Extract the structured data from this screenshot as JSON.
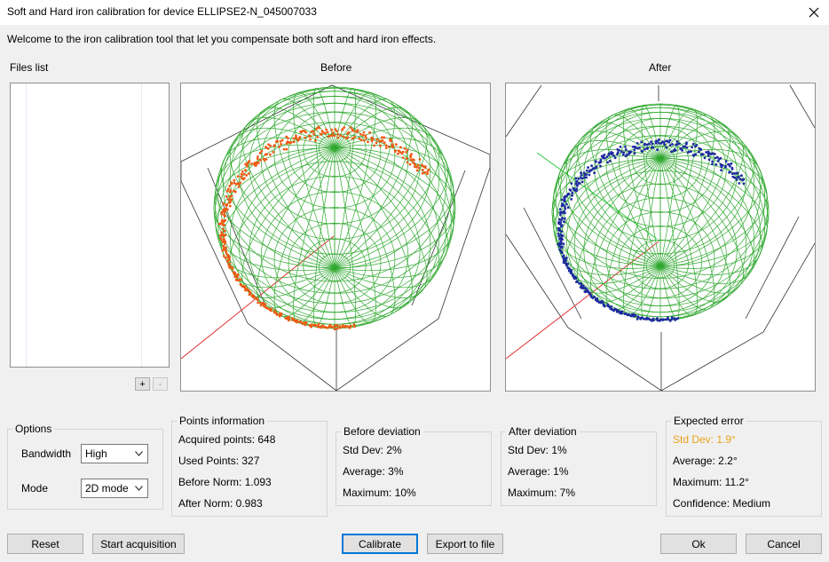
{
  "window": {
    "title": "Soft and Hard iron calibration for device ELLIPSE2-N_045007033",
    "close_icon": "close-icon"
  },
  "welcome_text": "Welcome to the iron calibration tool that let you compensate both soft and hard iron effects.",
  "files": {
    "label": "Files list",
    "add_label": "+",
    "remove_label": "-"
  },
  "views": {
    "before_label": "Before",
    "after_label": "After"
  },
  "colors": {
    "sphere": "#2fa82f",
    "before_points": "#f05a14",
    "after_points": "#1e2aa0",
    "axis_red": "#e03030",
    "axis_green": "#2ecc40",
    "warning": "#e8a317"
  },
  "options": {
    "label": "Options",
    "bandwidth_label": "Bandwidth",
    "bandwidth_value": "High",
    "mode_label": "Mode",
    "mode_value": "2D mode"
  },
  "points_info": {
    "label": "Points information",
    "acquired": "Acquired points: 648",
    "used": "Used Points: 327",
    "before_norm": "Before Norm: 1.093",
    "after_norm": "After Norm: 0.983"
  },
  "before_deviation": {
    "label": "Before deviation",
    "std": "Std Dev: 2%",
    "avg": "Average: 3%",
    "max": "Maximum: 10%"
  },
  "after_deviation": {
    "label": "After deviation",
    "std": "Std Dev: 1%",
    "avg": "Average: 1%",
    "max": "Maximum: 7%"
  },
  "expected_error": {
    "label": "Expected error",
    "std": "Std Dev: 1.9°",
    "avg": "Average: 2.2°",
    "max": "Maximum: 11.2°",
    "confidence": "Confidence: Medium"
  },
  "buttons": {
    "reset": "Reset",
    "start": "Start acquisition",
    "calibrate": "Calibrate",
    "export": "Export to file",
    "ok": "Ok",
    "cancel": "Cancel"
  }
}
